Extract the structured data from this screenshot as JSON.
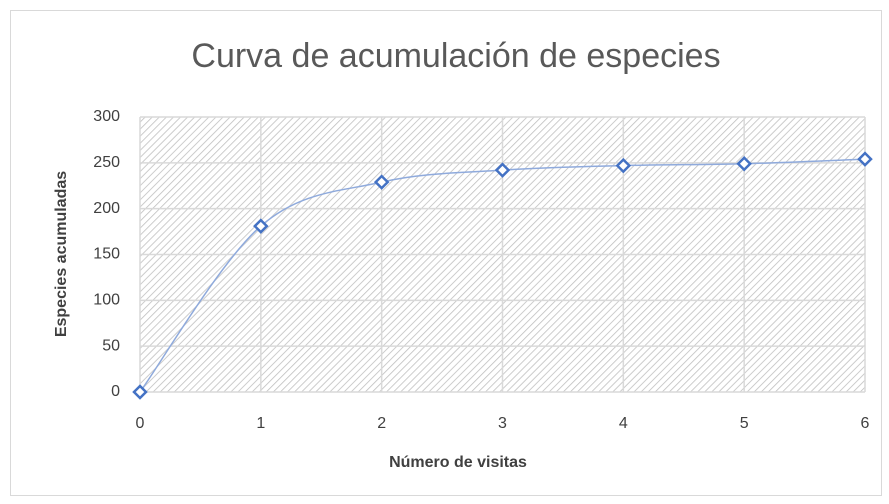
{
  "chart_data": {
    "type": "scatter",
    "title": "Curva de acumulación de especies",
    "x_label": "Número de visitas",
    "y_label": "Especies acumuladas",
    "series": [
      {
        "name": "Especies acumuladas",
        "color": "#4472c4",
        "line_color": "#8faadc",
        "x": [
          0,
          1,
          2,
          3,
          4,
          5,
          6
        ],
        "values": [
          0,
          181,
          229,
          242,
          247,
          249,
          254
        ]
      }
    ],
    "smooth": true,
    "marker": "diamond",
    "xlim": [
      0,
      6
    ],
    "xticks": [
      0,
      1,
      2,
      3,
      4,
      5,
      6
    ],
    "ylim": [
      0,
      300
    ],
    "yticks": [
      0,
      50,
      100,
      150,
      200,
      250,
      300
    ],
    "grid": true
  }
}
